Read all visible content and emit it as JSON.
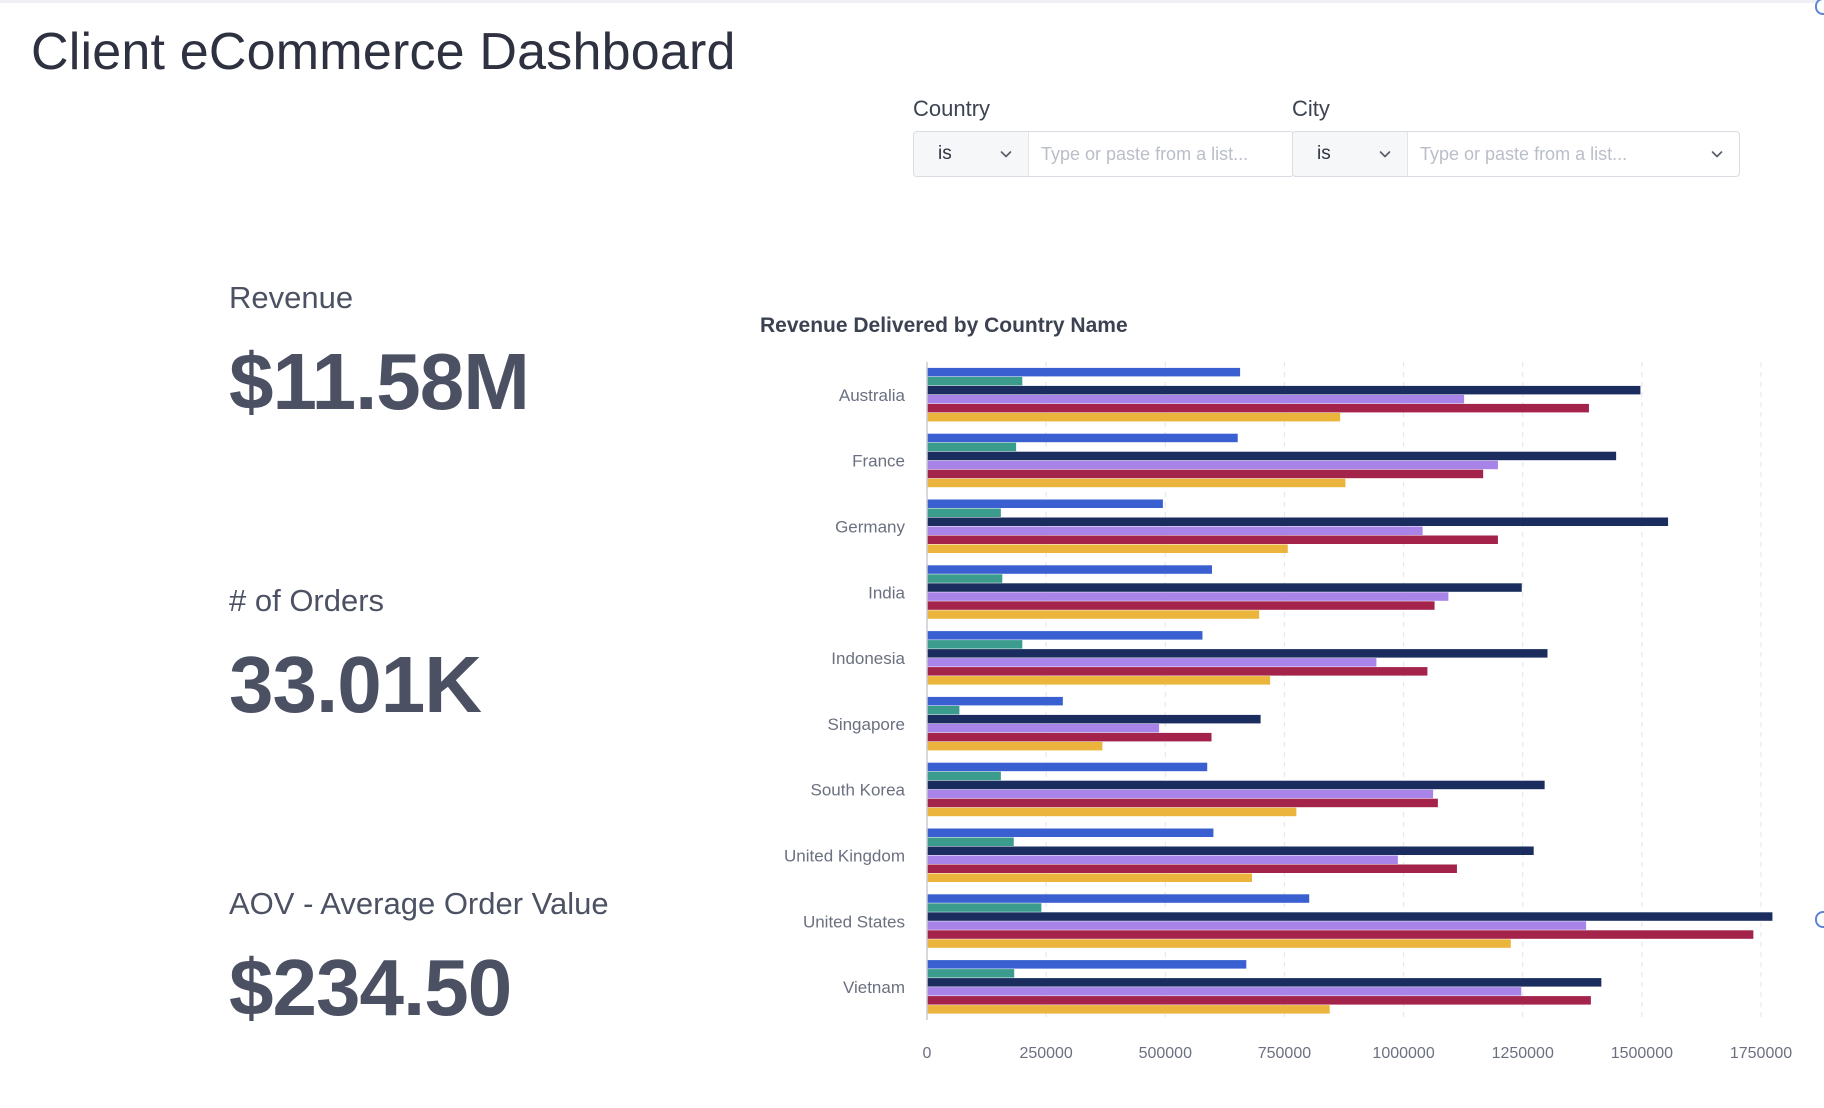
{
  "page": {
    "title": "Client eCommerce Dashboard"
  },
  "filters": {
    "country": {
      "label": "Country",
      "operator": "is",
      "placeholder": "Type or paste from a list..."
    },
    "city": {
      "label": "City",
      "operator": "is",
      "placeholder": "Type or paste from a list..."
    }
  },
  "kpis": [
    {
      "label": "Revenue",
      "value": "$11.58M"
    },
    {
      "label": "# of Orders",
      "value": "33.01K"
    },
    {
      "label": "AOV - Average Order Value",
      "value": "$234.50"
    }
  ],
  "chart_data": {
    "type": "bar",
    "orientation": "horizontal",
    "title": "Revenue Delivered by Country Name",
    "categories": [
      "Australia",
      "France",
      "Germany",
      "India",
      "Indonesia",
      "Singapore",
      "South Korea",
      "United Kingdom",
      "United States",
      "Vietnam"
    ],
    "series": [
      {
        "color": "#3a5fd0",
        "values": [
          657000,
          652000,
          495000,
          598000,
          578000,
          285000,
          588000,
          601000,
          802000,
          670000
        ]
      },
      {
        "color": "#3b9c8e",
        "values": [
          200000,
          187000,
          155000,
          158000,
          200000,
          68000,
          155000,
          182000,
          240000,
          183000
        ]
      },
      {
        "color": "#1a2d5e",
        "values": [
          1497000,
          1446000,
          1555000,
          1248000,
          1302000,
          700000,
          1296000,
          1273000,
          1774000,
          1415000
        ]
      },
      {
        "color": "#a984e8",
        "values": [
          1127000,
          1198000,
          1040000,
          1094000,
          943000,
          487000,
          1062000,
          988000,
          1383000,
          1247000
        ]
      },
      {
        "color": "#a3234a",
        "values": [
          1389000,
          1167000,
          1198000,
          1065000,
          1050000,
          597000,
          1072000,
          1112000,
          1734000,
          1393000
        ]
      },
      {
        "color": "#ebb43c",
        "values": [
          867000,
          878000,
          757000,
          697000,
          720000,
          368000,
          775000,
          682000,
          1225000,
          845000
        ]
      }
    ],
    "xticks": [
      "0",
      "250000",
      "500000",
      "750000",
      "1000000",
      "1250000",
      "1500000",
      "1750000"
    ],
    "xlim": [
      0,
      1750000
    ],
    "xlabel": "",
    "ylabel": "",
    "grid": "vertical dashed",
    "legend": "none"
  }
}
